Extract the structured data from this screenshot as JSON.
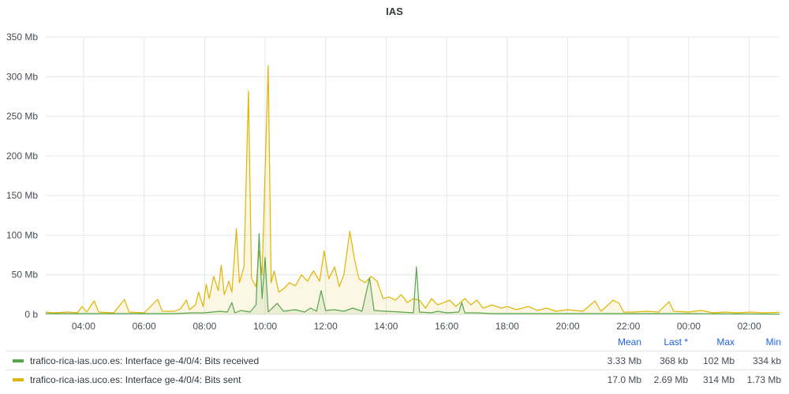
{
  "panel": {
    "title": "IAS"
  },
  "legend": {
    "headers": [
      "Mean",
      "Last *",
      "Max",
      "Min"
    ],
    "rows": [
      {
        "name": "trafico-rica-ias.uco.es: Interface ge-4/0/4: Bits received",
        "color": "#56a64b",
        "mean": "3.33 Mb",
        "last": "368 kb",
        "max": "102 Mb",
        "min": "334 kb"
      },
      {
        "name": "trafico-rica-ias.uco.es: Interface ge-4/0/4: Bits sent",
        "color": "#e0b400",
        "mean": "17.0 Mb",
        "last": "2.69 Mb",
        "max": "314 Mb",
        "min": "1.73 Mb"
      }
    ]
  },
  "chart_data": {
    "type": "area",
    "title": "IAS",
    "y_ticks": [
      "0 b",
      "50 Mb",
      "100 Mb",
      "150 Mb",
      "200 Mb",
      "250 Mb",
      "300 Mb",
      "350 Mb"
    ],
    "ylim_mb": [
      0,
      350
    ],
    "x_ticks": [
      "04:00",
      "06:00",
      "08:00",
      "10:00",
      "12:00",
      "14:00",
      "16:00",
      "18:00",
      "20:00",
      "22:00",
      "00:00",
      "02:00"
    ],
    "x_tick_hours": [
      4,
      6,
      8,
      10,
      12,
      14,
      16,
      18,
      20,
      22,
      24,
      26
    ],
    "xlim_hours": [
      2.75,
      27.0
    ],
    "grid": true,
    "legend_position": "bottom",
    "series": [
      {
        "name": "trafico-rica-ias.uco.es: Interface ge-4/0/4: Bits sent",
        "color": "#e0b400",
        "points": [
          [
            2.75,
            3
          ],
          [
            3.0,
            2
          ],
          [
            3.5,
            3
          ],
          [
            3.8,
            2
          ],
          [
            3.95,
            10
          ],
          [
            4.1,
            3
          ],
          [
            4.35,
            17
          ],
          [
            4.5,
            3
          ],
          [
            5.0,
            2
          ],
          [
            5.35,
            19
          ],
          [
            5.5,
            3
          ],
          [
            6.0,
            2
          ],
          [
            6.45,
            19
          ],
          [
            6.6,
            4
          ],
          [
            7.0,
            4
          ],
          [
            7.2,
            7
          ],
          [
            7.4,
            18
          ],
          [
            7.5,
            6
          ],
          [
            7.7,
            12
          ],
          [
            7.8,
            28
          ],
          [
            7.95,
            10
          ],
          [
            8.05,
            38
          ],
          [
            8.15,
            20
          ],
          [
            8.3,
            48
          ],
          [
            8.45,
            30
          ],
          [
            8.55,
            62
          ],
          [
            8.65,
            25
          ],
          [
            8.8,
            42
          ],
          [
            8.9,
            28
          ],
          [
            9.05,
            108
          ],
          [
            9.15,
            40
          ],
          [
            9.3,
            60
          ],
          [
            9.45,
            282
          ],
          [
            9.55,
            45
          ],
          [
            9.7,
            35
          ],
          [
            9.8,
            80
          ],
          [
            9.9,
            50
          ],
          [
            10.1,
            314
          ],
          [
            10.2,
            40
          ],
          [
            10.3,
            55
          ],
          [
            10.45,
            28
          ],
          [
            10.6,
            32
          ],
          [
            10.8,
            40
          ],
          [
            11.0,
            36
          ],
          [
            11.2,
            50
          ],
          [
            11.4,
            42
          ],
          [
            11.6,
            55
          ],
          [
            11.8,
            42
          ],
          [
            11.95,
            80
          ],
          [
            12.1,
            45
          ],
          [
            12.3,
            60
          ],
          [
            12.45,
            35
          ],
          [
            12.6,
            50
          ],
          [
            12.8,
            105
          ],
          [
            12.95,
            70
          ],
          [
            13.1,
            45
          ],
          [
            13.3,
            40
          ],
          [
            13.5,
            48
          ],
          [
            13.7,
            42
          ],
          [
            13.9,
            20
          ],
          [
            14.1,
            22
          ],
          [
            14.3,
            18
          ],
          [
            14.5,
            25
          ],
          [
            14.7,
            15
          ],
          [
            14.9,
            20
          ],
          [
            15.1,
            18
          ],
          [
            15.3,
            8
          ],
          [
            15.5,
            20
          ],
          [
            15.7,
            12
          ],
          [
            15.9,
            15
          ],
          [
            16.1,
            18
          ],
          [
            16.3,
            10
          ],
          [
            16.6,
            20
          ],
          [
            16.8,
            12
          ],
          [
            17.0,
            18
          ],
          [
            17.2,
            8
          ],
          [
            17.5,
            12
          ],
          [
            17.8,
            8
          ],
          [
            18.0,
            10
          ],
          [
            18.3,
            6
          ],
          [
            18.7,
            10
          ],
          [
            19.0,
            5
          ],
          [
            19.3,
            8
          ],
          [
            19.6,
            4
          ],
          [
            20.0,
            6
          ],
          [
            20.5,
            4
          ],
          [
            20.9,
            17
          ],
          [
            21.1,
            4
          ],
          [
            21.5,
            18
          ],
          [
            21.7,
            14
          ],
          [
            21.85,
            3
          ],
          [
            22.2,
            3
          ],
          [
            22.6,
            4
          ],
          [
            23.0,
            3
          ],
          [
            23.35,
            16
          ],
          [
            23.5,
            4
          ],
          [
            24.0,
            3
          ],
          [
            24.4,
            5
          ],
          [
            24.8,
            2
          ],
          [
            25.2,
            3
          ],
          [
            25.6,
            2
          ],
          [
            26.0,
            3
          ],
          [
            26.5,
            2
          ],
          [
            27.0,
            2.69
          ]
        ]
      },
      {
        "name": "trafico-rica-ias.uco.es: Interface ge-4/0/4: Bits received",
        "color": "#56a64b",
        "points": [
          [
            2.75,
            1
          ],
          [
            5.0,
            1
          ],
          [
            7.0,
            1
          ],
          [
            7.6,
            2
          ],
          [
            8.0,
            2
          ],
          [
            8.5,
            4
          ],
          [
            8.75,
            3
          ],
          [
            8.9,
            15
          ],
          [
            9.0,
            2
          ],
          [
            9.2,
            5
          ],
          [
            9.5,
            3
          ],
          [
            9.7,
            12
          ],
          [
            9.8,
            102
          ],
          [
            9.9,
            20
          ],
          [
            10.0,
            72
          ],
          [
            10.1,
            3
          ],
          [
            10.4,
            14
          ],
          [
            10.6,
            4
          ],
          [
            11.0,
            6
          ],
          [
            11.3,
            3
          ],
          [
            11.5,
            8
          ],
          [
            11.7,
            4
          ],
          [
            11.85,
            30
          ],
          [
            12.0,
            5
          ],
          [
            12.3,
            6
          ],
          [
            12.6,
            4
          ],
          [
            12.9,
            8
          ],
          [
            13.2,
            4
          ],
          [
            13.45,
            46
          ],
          [
            13.6,
            5
          ],
          [
            14.0,
            4
          ],
          [
            14.5,
            3
          ],
          [
            14.9,
            2
          ],
          [
            15.0,
            60
          ],
          [
            15.1,
            3
          ],
          [
            15.5,
            2
          ],
          [
            15.7,
            4
          ],
          [
            16.0,
            2
          ],
          [
            16.4,
            3
          ],
          [
            16.5,
            15
          ],
          [
            16.6,
            2
          ],
          [
            17.0,
            2
          ],
          [
            17.5,
            1
          ],
          [
            18.5,
            1
          ],
          [
            20.0,
            1
          ],
          [
            22.0,
            1
          ],
          [
            24.0,
            1
          ],
          [
            27.0,
            0.37
          ]
        ]
      }
    ]
  }
}
